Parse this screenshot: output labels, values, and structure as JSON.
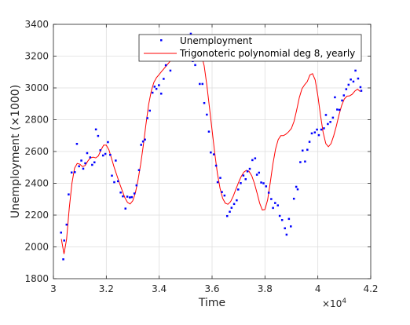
{
  "chart_data": {
    "type": "scatter",
    "xlabel": "Time",
    "ylabel": "Unemployment (×1000)",
    "x_exponent_label": "×10",
    "x_exponent_power": "4",
    "x_scale_factor": 10000,
    "xlim": [
      30000,
      42000
    ],
    "ylim": [
      1800,
      3400
    ],
    "x_ticks": [
      30000,
      32000,
      34000,
      36000,
      38000,
      40000,
      42000
    ],
    "x_tick_labels": [
      "3",
      "3.2",
      "3.4",
      "3.6",
      "3.8",
      "4",
      "4.2"
    ],
    "y_ticks": [
      1800,
      2000,
      2200,
      2400,
      2600,
      2800,
      3000,
      3200,
      3400
    ],
    "y_tick_labels": [
      "1800",
      "2000",
      "2200",
      "2400",
      "2600",
      "2800",
      "3000",
      "3200",
      "3400"
    ],
    "grid": true,
    "legend_position": "top-right",
    "series": [
      {
        "name": "Unemployment",
        "kind": "scatter",
        "color": "#0000ff",
        "x": [
          30289,
          30373,
          30408,
          30499,
          30576,
          30689,
          30809,
          30889,
          30970,
          31056,
          31128,
          31205,
          31277,
          31391,
          31466,
          31552,
          31608,
          31690,
          31776,
          31878,
          31965,
          32062,
          32148,
          32213,
          32301,
          32357,
          32443,
          32544,
          32627,
          32725,
          32794,
          32887,
          32963,
          33064,
          33143,
          33236,
          33318,
          33390,
          33464,
          33554,
          33646,
          33748,
          33826,
          33895,
          33991,
          34076,
          34169,
          34251,
          34340,
          34424,
          34516,
          34603,
          34670,
          34773,
          34847,
          34957,
          35023,
          35098,
          35196,
          35269,
          35363,
          35451,
          35534,
          35637,
          35704,
          35803,
          35880,
          35951,
          36066,
          36152,
          36211,
          36312,
          36373,
          36470,
          36571,
          36669,
          36737,
          36834,
          36932,
          36988,
          37083,
          37185,
          37270,
          37339,
          37426,
          37525,
          37629,
          37697,
          37775,
          37858,
          37946,
          38043,
          38144,
          38238,
          38305,
          38385,
          38488,
          38559,
          38649,
          38754,
          38818,
          38907,
          38979,
          39095,
          39183,
          39238,
          39338,
          39423,
          39517,
          39604,
          39685,
          39772,
          39886,
          39968,
          40037,
          40131,
          40231,
          40306,
          40378,
          40474,
          40570,
          40646,
          40733,
          40816,
          40918,
          40984,
          41074,
          41163,
          41246,
          41345,
          41423,
          41523,
          41612,
          41643
        ],
        "y": [
          2090,
          1922,
          2040,
          2140,
          2330,
          2468,
          2470,
          2648,
          2507,
          2543,
          2492,
          2526,
          2590,
          2563,
          2516,
          2532,
          2739,
          2698,
          2608,
          2575,
          2585,
          2659,
          2579,
          2448,
          2407,
          2543,
          2413,
          2342,
          2318,
          2241,
          2316,
          2311,
          2313,
          2336,
          2387,
          2483,
          2642,
          2663,
          2675,
          2810,
          2857,
          2970,
          3008,
          2994,
          3017,
          2964,
          3057,
          3143,
          3174,
          3109,
          3203,
          3244,
          3261,
          3214,
          3183,
          3238,
          3258,
          3331,
          3341,
          3169,
          3144,
          3216,
          3025,
          3025,
          2905,
          2832,
          2725,
          2594,
          2582,
          2511,
          2407,
          2434,
          2345,
          2323,
          2194,
          2221,
          2246,
          2270,
          2293,
          2361,
          2401,
          2449,
          2426,
          2475,
          2491,
          2546,
          2557,
          2454,
          2467,
          2405,
          2400,
          2381,
          2341,
          2301,
          2245,
          2276,
          2261,
          2195,
          2169,
          2117,
          2077,
          2176,
          2129,
          2303,
          2378,
          2362,
          2533,
          2606,
          2537,
          2611,
          2661,
          2714,
          2720,
          2738,
          2703,
          2738,
          2746,
          2830,
          2773,
          2786,
          2813,
          2941,
          2864,
          2862,
          2921,
          2953,
          2992,
          3020,
          3053,
          3040,
          3109,
          3059,
          3005,
          2982
        ]
      },
      {
        "name": "Trigonoteric polynomial deg 8, yearly",
        "kind": "line",
        "color": "#ff0000",
        "x": [
          30300,
          30400,
          30500,
          30600,
          30700,
          30800,
          30900,
          31000,
          31100,
          31200,
          31300,
          31400,
          31500,
          31600,
          31700,
          31800,
          31900,
          32000,
          32100,
          32200,
          32300,
          32400,
          32500,
          32600,
          32700,
          32800,
          32900,
          33000,
          33100,
          33200,
          33300,
          33400,
          33500,
          33600,
          33700,
          33800,
          33900,
          34000,
          34100,
          34200,
          34300,
          34400,
          34500,
          34600,
          34700,
          34800,
          34900,
          35000,
          35100,
          35200,
          35300,
          35400,
          35500,
          35600,
          35700,
          35800,
          35900,
          36000,
          36100,
          36200,
          36300,
          36400,
          36500,
          36600,
          36700,
          36800,
          36900,
          37000,
          37100,
          37200,
          37300,
          37400,
          37500,
          37600,
          37700,
          37800,
          37900,
          38000,
          38100,
          38200,
          38300,
          38400,
          38500,
          38600,
          38700,
          38800,
          38900,
          39000,
          39100,
          39200,
          39300,
          39400,
          39500,
          39600,
          39700,
          39800,
          39900,
          40000,
          40100,
          40200,
          40300,
          40400,
          40500,
          40600,
          40700,
          40800,
          40900,
          41000,
          41100,
          41200,
          41300,
          41400,
          41500,
          41600
        ],
        "y": [
          2050,
          1955,
          2050,
          2245,
          2400,
          2495,
          2525,
          2520,
          2505,
          2512,
          2540,
          2560,
          2565,
          2560,
          2572,
          2610,
          2640,
          2640,
          2610,
          2555,
          2500,
          2450,
          2400,
          2355,
          2310,
          2280,
          2270,
          2290,
          2340,
          2420,
          2520,
          2640,
          2770,
          2895,
          2980,
          3035,
          3065,
          3085,
          3105,
          3125,
          3145,
          3165,
          3185,
          3205,
          3215,
          3222,
          3232,
          3248,
          3248,
          3232,
          3220,
          3222,
          3232,
          3208,
          3140,
          3020,
          2880,
          2735,
          2590,
          2465,
          2370,
          2305,
          2275,
          2268,
          2285,
          2318,
          2362,
          2405,
          2442,
          2470,
          2482,
          2475,
          2448,
          2400,
          2340,
          2275,
          2232,
          2235,
          2295,
          2405,
          2520,
          2615,
          2675,
          2700,
          2700,
          2710,
          2725,
          2745,
          2790,
          2860,
          2940,
          2995,
          3020,
          3040,
          3082,
          3090,
          3050,
          2950,
          2830,
          2720,
          2650,
          2630,
          2650,
          2700,
          2760,
          2830,
          2890,
          2930,
          2948,
          2950,
          2960,
          2980,
          2992,
          2978
        ]
      }
    ]
  }
}
